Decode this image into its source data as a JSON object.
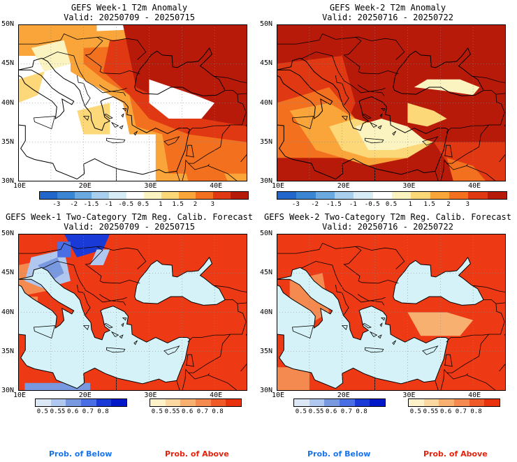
{
  "panels": [
    {
      "title": "GEFS Week-1 T2m Anomaly",
      "valid": "Valid: 20250709 - 20250715",
      "kind": "anom",
      "week": 1
    },
    {
      "title": "GEFS Week-2 T2m Anomaly",
      "valid": "Valid: 20250716 - 20250722",
      "kind": "anom",
      "week": 2
    },
    {
      "title": "GEFS Week-1 Two-Category T2m Reg. Calib. Forecast",
      "valid": "Valid: 20250709 - 20250715",
      "kind": "prob",
      "week": 1
    },
    {
      "title": "GEFS Week-2 Two-Category T2m Reg. Calib. Forecast",
      "valid": "Valid: 20250716 - 20250722",
      "kind": "prob",
      "week": 2
    }
  ],
  "map_axes": {
    "lat_labels": [
      "50N",
      "45N",
      "40N",
      "35N",
      "30N"
    ],
    "lon_labels": [
      "10E",
      "20E",
      "30E",
      "40E"
    ]
  },
  "anomaly_colorbar": {
    "labels": [
      "-3",
      "-2",
      "-1.5",
      "-1",
      "-0.5",
      "0.5",
      "1",
      "1.5",
      "2",
      "3"
    ],
    "colors": [
      "#2166c8",
      "#3a86d4",
      "#6aaae0",
      "#a8d0ee",
      "#d8ecf8",
      "#ffffff",
      "#fbf3c0",
      "#fcd878",
      "#f9a53a",
      "#f2701e",
      "#e03812",
      "#b81a0a"
    ]
  },
  "prob_below_colorbar": {
    "labels": [
      "0.5",
      "0.55",
      "0.6",
      "0.7",
      "0.8"
    ],
    "colors": [
      "#dce8f6",
      "#b0c8f0",
      "#7898e0",
      "#4a6ee4",
      "#1a3ad8",
      "#0018c8"
    ]
  },
  "prob_above_colorbar": {
    "labels": [
      "0.5",
      "0.55",
      "0.6",
      "0.7",
      "0.8"
    ],
    "colors": [
      "#fff2c8",
      "#fbd8a0",
      "#f8b070",
      "#f58a50",
      "#f05a28",
      "#e8320e"
    ]
  },
  "prob_legend": {
    "below": "Prob. of Below",
    "above": "Prob. of Above",
    "below_color": "#1a73e8",
    "above_color": "#e3230e"
  },
  "colors": {
    "sea": "#d4f2f7",
    "land_neutral": "#ffffff",
    "above_fill": "#ee3a14",
    "anom_hot": "#c41e0c"
  }
}
